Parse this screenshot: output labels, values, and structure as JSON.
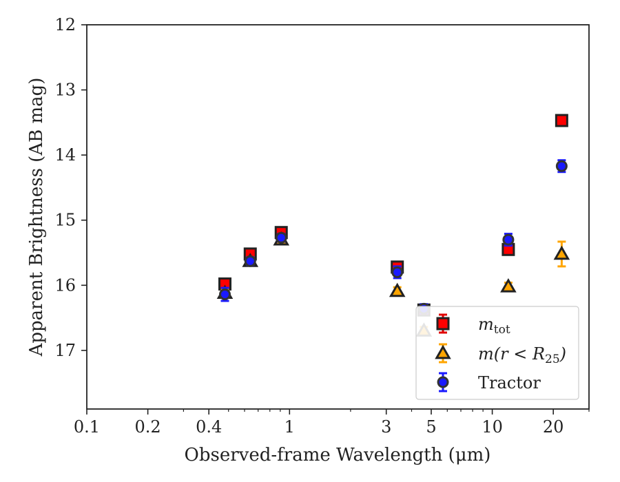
{
  "chart_data": {
    "type": "scatter",
    "title": "",
    "xlabel": "Observed-frame Wavelength (μm)",
    "ylabel": "Apparent Brightness (AB mag)",
    "xscale": "log",
    "xlim": [
      0.1,
      30
    ],
    "ylim": [
      17.9,
      12
    ],
    "y_inverted": true,
    "x_ticks": [
      0.1,
      0.2,
      0.4,
      1,
      3,
      5,
      10,
      20
    ],
    "x_tick_labels": [
      "0.1",
      "0.2",
      "0.4",
      "1",
      "3",
      "5",
      "10",
      "20"
    ],
    "y_ticks": [
      12,
      13,
      14,
      15,
      16,
      17
    ],
    "y_tick_labels": [
      "12",
      "13",
      "14",
      "15",
      "16",
      "17"
    ],
    "grid": false,
    "legend_position": "lower right",
    "series": [
      {
        "name": "m_tot",
        "legend_label_main": "m",
        "legend_label_sub": "tot",
        "marker": "square",
        "color": "#ff0000",
        "edgecolor": "#222222",
        "errcolor": "#e00000",
        "points": [
          {
            "x": 0.48,
            "y": 15.98,
            "err": 0.06
          },
          {
            "x": 0.64,
            "y": 15.52,
            "err": 0.06
          },
          {
            "x": 0.91,
            "y": 15.19,
            "err": 0.06
          },
          {
            "x": 3.4,
            "y": 15.72,
            "err": 0.06
          },
          {
            "x": 4.6,
            "y": 16.38,
            "err": 0.06
          },
          {
            "x": 12.0,
            "y": 15.45,
            "err": 0.06
          },
          {
            "x": 22.0,
            "y": 13.47,
            "err": 0.06
          }
        ]
      },
      {
        "name": "m(r < R_25)",
        "legend_label_main": "m(r < R",
        "legend_label_sub": "25",
        "legend_label_tail": ")",
        "marker": "triangle",
        "color": "#ffa500",
        "edgecolor": "#222222",
        "errcolor": "#ffa500",
        "points": [
          {
            "x": 0.48,
            "y": 16.12,
            "err": 0.06
          },
          {
            "x": 0.64,
            "y": 15.63,
            "err": 0.06
          },
          {
            "x": 0.91,
            "y": 15.3,
            "err": 0.06
          },
          {
            "x": 3.4,
            "y": 16.09,
            "err": 0.06
          },
          {
            "x": 4.6,
            "y": 16.7,
            "err": 0.06
          },
          {
            "x": 12.0,
            "y": 16.02,
            "err": 0.06
          },
          {
            "x": 22.0,
            "y": 15.52,
            "err": 0.19
          }
        ]
      },
      {
        "name": "Tractor",
        "legend_label_main": "Tractor",
        "marker": "circle",
        "color": "#1a1aff",
        "edgecolor": "#333333",
        "errcolor": "#1a1aff",
        "points": [
          {
            "x": 0.48,
            "y": 16.14,
            "err": 0.1
          },
          {
            "x": 0.64,
            "y": 15.63,
            "err": 0.06
          },
          {
            "x": 0.91,
            "y": 15.27,
            "err": 0.06
          },
          {
            "x": 3.4,
            "y": 15.8,
            "err": 0.09
          },
          {
            "x": 4.6,
            "y": 16.36,
            "err": 0.07
          },
          {
            "x": 12.0,
            "y": 15.3,
            "err": 0.09
          },
          {
            "x": 22.0,
            "y": 14.17,
            "err": 0.09
          }
        ]
      }
    ]
  }
}
